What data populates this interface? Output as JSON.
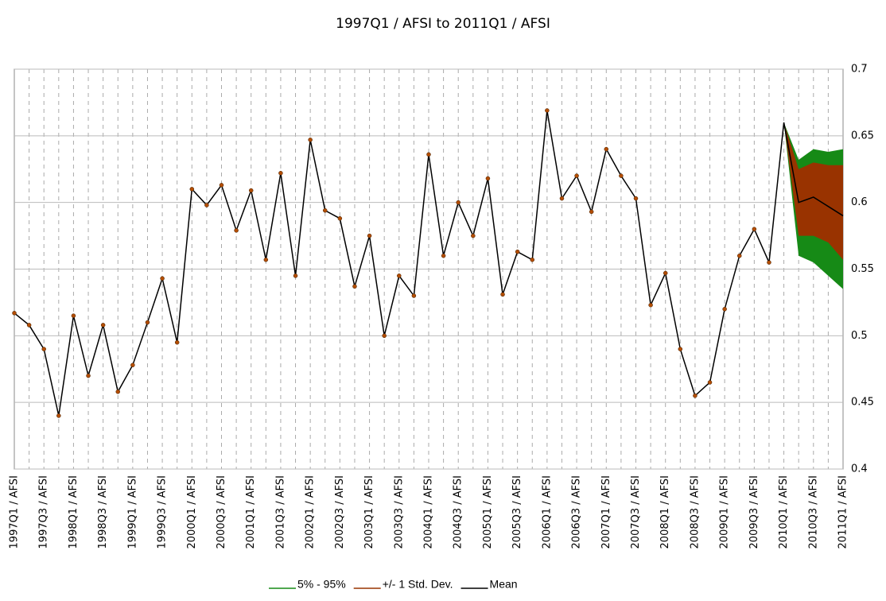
{
  "chart_data": {
    "type": "line",
    "title": "1997Q1 / AFSI to 2011Q1 / AFSI",
    "categories": [
      "1997Q1 / AFSI",
      null,
      "1997Q3 / AFSI",
      null,
      "1998Q1 / AFSI",
      null,
      "1998Q3 / AFSI",
      null,
      "1999Q1 / AFSI",
      null,
      "1999Q3 / AFSI",
      null,
      "2000Q1 / AFSI",
      null,
      "2000Q3 / AFSI",
      null,
      "2001Q1 / AFSI",
      null,
      "2001Q3 / AFSI",
      null,
      "2002Q1 / AFSI",
      null,
      "2002Q3 / AFSI",
      null,
      "2003Q1 / AFSI",
      null,
      "2003Q3 / AFSI",
      null,
      "2004Q1 / AFSI",
      null,
      "2004Q3 / AFSI",
      null,
      "2005Q1 / AFSI",
      null,
      "2005Q3 / AFSI",
      null,
      "2006Q1 / AFSI",
      null,
      "2006Q3 / AFSI",
      null,
      "2007Q1 / AFSI",
      null,
      "2007Q3 / AFSI",
      null,
      "2008Q1 / AFSI",
      null,
      "2008Q3 / AFSI",
      null,
      "2009Q1 / AFSI",
      null,
      "2009Q3 / AFSI",
      null,
      "2010Q1 / AFSI",
      null,
      "2010Q3 / AFSI",
      null,
      "2011Q1 / AFSI"
    ],
    "series": [
      {
        "name": "5% - 95%",
        "color": "#168a16",
        "kind": "band",
        "upper": [
          null,
          null,
          null,
          null,
          null,
          null,
          null,
          null,
          null,
          null,
          null,
          null,
          null,
          null,
          null,
          null,
          null,
          null,
          null,
          null,
          null,
          null,
          null,
          null,
          null,
          null,
          null,
          null,
          null,
          null,
          null,
          null,
          null,
          null,
          null,
          null,
          null,
          null,
          null,
          null,
          null,
          null,
          null,
          null,
          null,
          null,
          null,
          null,
          null,
          null,
          null,
          null,
          0.66,
          0.632,
          0.64,
          0.638,
          0.64
        ],
        "lower": [
          null,
          null,
          null,
          null,
          null,
          null,
          null,
          null,
          null,
          null,
          null,
          null,
          null,
          null,
          null,
          null,
          null,
          null,
          null,
          null,
          null,
          null,
          null,
          null,
          null,
          null,
          null,
          null,
          null,
          null,
          null,
          null,
          null,
          null,
          null,
          null,
          null,
          null,
          null,
          null,
          null,
          null,
          null,
          null,
          null,
          null,
          null,
          null,
          null,
          null,
          null,
          null,
          0.66,
          0.56,
          0.555,
          0.545,
          0.535
        ]
      },
      {
        "name": "+/- 1 Std. Dev.",
        "color": "#993300",
        "kind": "band",
        "upper": [
          null,
          null,
          null,
          null,
          null,
          null,
          null,
          null,
          null,
          null,
          null,
          null,
          null,
          null,
          null,
          null,
          null,
          null,
          null,
          null,
          null,
          null,
          null,
          null,
          null,
          null,
          null,
          null,
          null,
          null,
          null,
          null,
          null,
          null,
          null,
          null,
          null,
          null,
          null,
          null,
          null,
          null,
          null,
          null,
          null,
          null,
          null,
          null,
          null,
          null,
          null,
          null,
          0.66,
          0.625,
          0.63,
          0.628,
          0.628
        ],
        "lower": [
          null,
          null,
          null,
          null,
          null,
          null,
          null,
          null,
          null,
          null,
          null,
          null,
          null,
          null,
          null,
          null,
          null,
          null,
          null,
          null,
          null,
          null,
          null,
          null,
          null,
          null,
          null,
          null,
          null,
          null,
          null,
          null,
          null,
          null,
          null,
          null,
          null,
          null,
          null,
          null,
          null,
          null,
          null,
          null,
          null,
          null,
          null,
          null,
          null,
          null,
          null,
          null,
          0.66,
          0.575,
          0.575,
          0.57,
          0.557
        ]
      },
      {
        "name": "Mean",
        "color": "#000000",
        "kind": "line",
        "marker_color": "#b34d00",
        "values": [
          0.517,
          0.508,
          0.49,
          0.44,
          0.515,
          0.47,
          0.508,
          0.458,
          0.478,
          0.51,
          0.543,
          0.495,
          0.61,
          0.598,
          0.613,
          0.579,
          0.609,
          0.557,
          0.622,
          0.545,
          0.647,
          0.594,
          0.588,
          0.537,
          0.575,
          0.5,
          0.545,
          0.53,
          0.636,
          0.56,
          0.6,
          0.575,
          0.618,
          0.531,
          0.563,
          0.557,
          0.669,
          0.603,
          0.62,
          0.593,
          0.64,
          0.62,
          0.603,
          0.523,
          0.547,
          0.49,
          0.455,
          0.465,
          0.52,
          0.56,
          0.58,
          0.555,
          0.66,
          0.6,
          0.604,
          0.597,
          0.59
        ]
      }
    ],
    "ylim": [
      0.4,
      0.7
    ],
    "yticks": [
      0.4,
      0.45,
      0.5,
      0.55,
      0.6,
      0.65,
      0.7
    ],
    "y_axis_side": "right",
    "grid": true
  }
}
